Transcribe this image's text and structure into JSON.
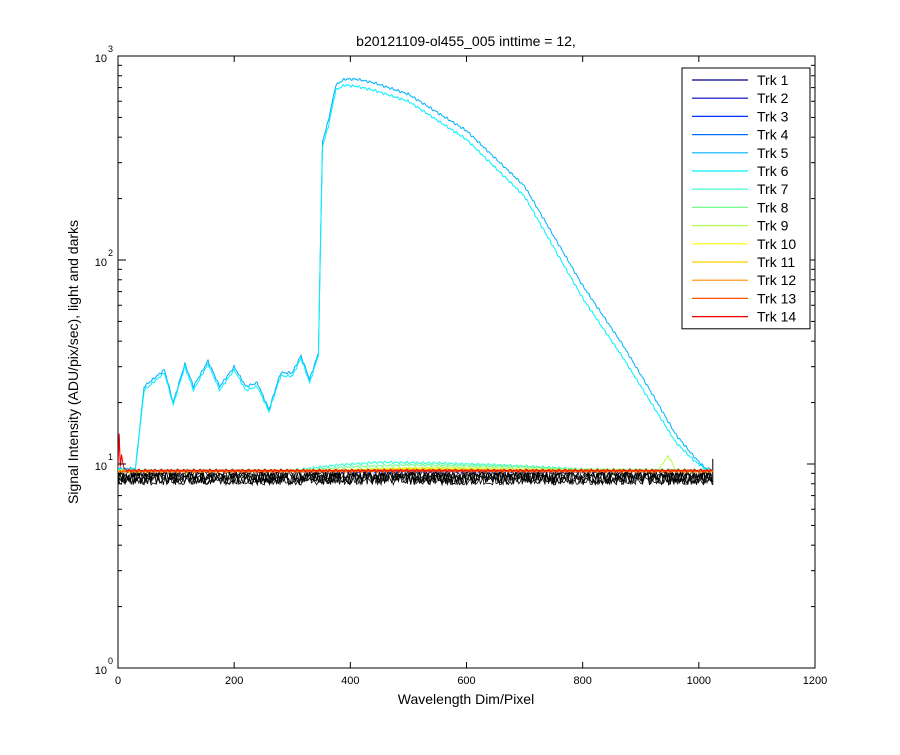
{
  "chart_data": {
    "type": "line",
    "title": "b20121109-ol455_005 inttime = 12,",
    "xlabel": "Wavelength Dim/Pixel",
    "ylabel": "Signal Intensity (ADU/pix/sec), light and darks",
    "xlim": [
      0,
      1200
    ],
    "ylim": [
      1,
      1000
    ],
    "yscale": "log",
    "x_ticks": [
      "0",
      "200",
      "400",
      "600",
      "800",
      "1000",
      "1200"
    ],
    "y_ticks": [
      {
        "base": "10",
        "exp": "0",
        "value": 1
      },
      {
        "base": "10",
        "exp": "1",
        "value": 10
      },
      {
        "base": "10",
        "exp": "2",
        "value": 100
      },
      {
        "base": "10",
        "exp": "3",
        "value": 1000
      }
    ],
    "grid": false,
    "legend_position": "top-right",
    "series": [
      {
        "name": "Trk 1",
        "color": "#00008F",
        "x": [
          0,
          1024
        ],
        "y": [
          9.2,
          9.2
        ]
      },
      {
        "name": "Trk 2",
        "color": "#0000CF",
        "x": [
          0,
          1024
        ],
        "y": [
          9.2,
          9.2
        ]
      },
      {
        "name": "Trk 3",
        "color": "#0030FF",
        "x": [
          0,
          1024
        ],
        "y": [
          9.2,
          9.2
        ]
      },
      {
        "name": "Trk 4",
        "color": "#0070FF",
        "x": [
          0,
          1024
        ],
        "y": [
          9.25,
          9.25
        ]
      },
      {
        "name": "Trk 5",
        "color": "#00B0FF",
        "x": [
          0,
          30,
          45,
          60,
          80,
          95,
          115,
          130,
          155,
          175,
          200,
          220,
          240,
          260,
          280,
          300,
          315,
          330,
          345,
          352,
          362,
          375,
          390,
          410,
          440,
          500,
          600,
          700,
          800,
          870,
          920,
          960,
          990,
          1010,
          1020
        ],
        "y": [
          9.5,
          9.5,
          24,
          26,
          29,
          20,
          31,
          24,
          32,
          24,
          30,
          24,
          25,
          18.5,
          28,
          28,
          34,
          26,
          35,
          380,
          480,
          720,
          770,
          770,
          740,
          650,
          430,
          230,
          75,
          38,
          22,
          14,
          11,
          9.6,
          9.4
        ]
      },
      {
        "name": "Trk 6",
        "color": "#00F0FF",
        "x": [
          0,
          30,
          45,
          60,
          80,
          95,
          115,
          130,
          155,
          175,
          200,
          220,
          240,
          260,
          280,
          300,
          315,
          330,
          345,
          352,
          362,
          375,
          390,
          410,
          440,
          500,
          600,
          700,
          800,
          870,
          920,
          960,
          990,
          1010,
          1020
        ],
        "y": [
          9.4,
          9.4,
          23,
          25,
          28,
          19.5,
          30,
          23,
          31,
          23,
          29,
          23,
          24,
          18,
          27,
          27,
          33,
          25,
          34,
          360,
          450,
          680,
          720,
          710,
          680,
          600,
          390,
          205,
          65,
          33,
          19.5,
          12.8,
          10.5,
          9.5,
          9.3
        ]
      },
      {
        "name": "Trk 7",
        "color": "#30FFCF",
        "x": [
          0,
          300,
          380,
          450,
          550,
          650,
          750,
          800,
          1024
        ],
        "y": [
          9.3,
          9.3,
          9.9,
          10.2,
          10.1,
          9.9,
          9.6,
          9.4,
          9.3
        ]
      },
      {
        "name": "Trk 8",
        "color": "#70FF8F",
        "x": [
          0,
          320,
          400,
          500,
          600,
          700,
          780,
          1024
        ],
        "y": [
          9.3,
          9.3,
          9.7,
          9.9,
          9.8,
          9.7,
          9.4,
          9.3
        ]
      },
      {
        "name": "Trk 9",
        "color": "#B0FF4F",
        "x": [
          0,
          350,
          450,
          550,
          650,
          750,
          930,
          943,
          947,
          952,
          960,
          1024
        ],
        "y": [
          9.25,
          9.25,
          9.5,
          9.6,
          9.55,
          9.4,
          9.3,
          10.6,
          10.9,
          10.4,
          9.3,
          9.25
        ]
      },
      {
        "name": "Trk 10",
        "color": "#F0FF0F",
        "x": [
          0,
          400,
          500,
          600,
          700,
          1024
        ],
        "y": [
          9.2,
          9.3,
          9.5,
          9.45,
          9.3,
          9.2
        ]
      },
      {
        "name": "Trk 11",
        "color": "#FFCF00",
        "x": [
          0,
          400,
          500,
          600,
          700,
          1024
        ],
        "y": [
          9.2,
          9.25,
          9.4,
          9.35,
          9.25,
          9.2
        ]
      },
      {
        "name": "Trk 12",
        "color": "#FF8F00",
        "x": [
          0,
          400,
          500,
          600,
          1024
        ],
        "y": [
          9.2,
          9.25,
          9.35,
          9.3,
          9.2
        ]
      },
      {
        "name": "Trk 13",
        "color": "#FF4F00",
        "x": [
          0,
          1024
        ],
        "y": [
          9.2,
          9.2
        ]
      },
      {
        "name": "Trk 14",
        "color": "#EF0000",
        "x": [
          0,
          2,
          4,
          6,
          8,
          10,
          15,
          1024
        ],
        "y": [
          9.6,
          14,
          9.8,
          11.2,
          10.1,
          9.6,
          9.3,
          9.3
        ]
      }
    ],
    "darks": {
      "color": "#000000",
      "x": [
        0,
        1024
      ],
      "y_min": 7.9,
      "y_max": 9.3
    }
  }
}
